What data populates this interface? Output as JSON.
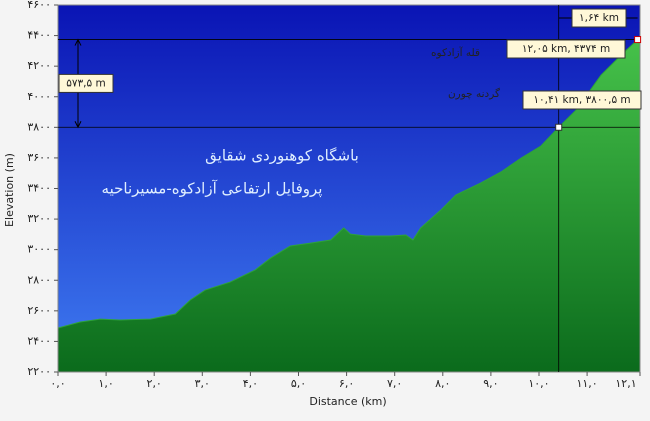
{
  "chart_data": {
    "type": "area",
    "subtitle": "باشگاه کوهنوردی شقایق",
    "title": "پروفایل ارتفاعی آزادکوه-مسیرناحیه",
    "x_label": "Distance  (km)",
    "y_label": "Elevation (m)",
    "color": "#2ea33a",
    "x": [
      0,
      0.46,
      0.88,
      1.29,
      1.92,
      2.44,
      2.75,
      3.06,
      3.58,
      4.1,
      4.42,
      4.83,
      5.25,
      5.67,
      5.94,
      6.08,
      6.4,
      6.92,
      7.23,
      7.38,
      7.54,
      7.96,
      8.27,
      8.79,
      9.21,
      9.63,
      10.04,
      10.41,
      10.77,
      11.29,
      11.71,
      12.05,
      12.1
    ],
    "values": [
      2488,
      2527,
      2546,
      2540,
      2546,
      2579,
      2671,
      2736,
      2788,
      2867,
      2945,
      3024,
      3043,
      3063,
      3142,
      3102,
      3089,
      3089,
      3096,
      3063,
      3142,
      3259,
      3357,
      3436,
      3508,
      3599,
      3678,
      3800.5,
      3913,
      4142,
      4273,
      4374,
      4385
    ],
    "xlim": [
      0,
      12.1
    ],
    "ylim": [
      2200,
      4600
    ],
    "xticks": [
      {
        "value": 0,
        "label": "۰,۰"
      },
      {
        "value": 1,
        "label": "۱,۰"
      },
      {
        "value": 2,
        "label": "۲,۰"
      },
      {
        "value": 3,
        "label": "۳,۰"
      },
      {
        "value": 4,
        "label": "۴,۰"
      },
      {
        "value": 5,
        "label": "۵,۰"
      },
      {
        "value": 6,
        "label": "۶,۰"
      },
      {
        "value": 7,
        "label": "۷,۰"
      },
      {
        "value": 8,
        "label": "۸,۰"
      },
      {
        "value": 9,
        "label": "۹,۰"
      },
      {
        "value": 10,
        "label": "۱۰,۰"
      },
      {
        "value": 11,
        "label": "۱۱,۰"
      },
      {
        "value": 12.1,
        "label": "۱۲,۱"
      }
    ],
    "yticks": [
      {
        "value": 2200,
        "label": "۲۲۰۰"
      },
      {
        "value": 2400,
        "label": "۲۴۰۰"
      },
      {
        "value": 2600,
        "label": "۲۶۰۰"
      },
      {
        "value": 2800,
        "label": "۲۸۰۰"
      },
      {
        "value": 3000,
        "label": "۳۰۰۰"
      },
      {
        "value": 3200,
        "label": "۳۲۰۰"
      },
      {
        "value": 3400,
        "label": "۳۴۰۰"
      },
      {
        "value": 3600,
        "label": "۳۶۰۰"
      },
      {
        "value": 3800,
        "label": "۳۸۰۰"
      },
      {
        "value": 4000,
        "label": "۴۰۰۰"
      },
      {
        "value": 4200,
        "label": "۴۲۰۰"
      },
      {
        "value": 4400,
        "label": "۴۴۰۰"
      },
      {
        "value": 4600,
        "label": "۴۶۰۰"
      }
    ],
    "markers": [
      {
        "name": "گردنه چورن",
        "x": 10.41,
        "y": 3800.5,
        "label": "۱۰,۴۱ km, ۳۸۰۰,۵ m"
      },
      {
        "name": "قله آزادکوه",
        "x": 12.05,
        "y": 4374,
        "label": "۱۲,۰۵ km, ۴۳۷۴ m"
      }
    ],
    "rise": {
      "value": 573.5,
      "label": "۵۷۳,۵ m"
    },
    "run": {
      "value": 1.64,
      "label": "۱,۶۴ km"
    }
  }
}
